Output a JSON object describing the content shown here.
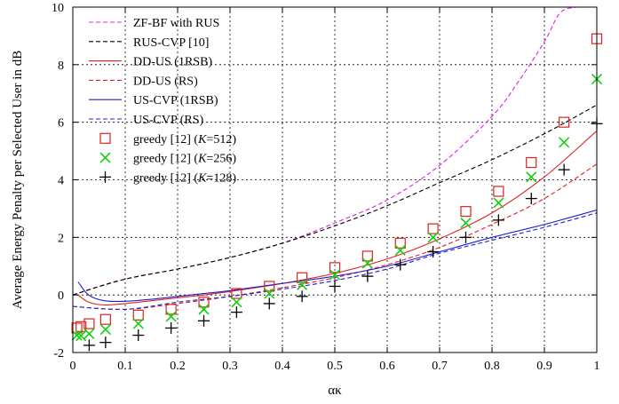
{
  "chart_data": {
    "type": "line",
    "xlabel": "ακ",
    "ylabel": "Average Energy Penalty per Selected User in dB",
    "xlim": [
      0,
      1
    ],
    "ylim": [
      -2,
      10
    ],
    "x_ticks": [
      0,
      0.1,
      0.2,
      0.3,
      0.4,
      0.5,
      0.6,
      0.7,
      0.8,
      0.9,
      1
    ],
    "x_tick_labels": [
      "0",
      "0.1",
      "0.2",
      "0.3",
      "0.4",
      "0.5",
      "0.6",
      "0.7",
      "0.8",
      "0.9",
      "1"
    ],
    "y_ticks": [
      -2,
      0,
      2,
      4,
      6,
      8,
      10
    ],
    "y_tick_labels": [
      "-2",
      "0",
      "2",
      "4",
      "6",
      "8",
      "10"
    ],
    "grid": true,
    "legend_position": "top-left",
    "series": [
      {
        "name": "ZF-BF with RUS",
        "style": "line",
        "dash": "dashed",
        "color": "#e020e0",
        "x": [
          0.0,
          0.05,
          0.1,
          0.2,
          0.3,
          0.4,
          0.5,
          0.6,
          0.7,
          0.8,
          0.85,
          0.9,
          0.93,
          0.96
        ],
        "y": [
          0.0,
          0.3,
          0.55,
          0.9,
          1.3,
          1.8,
          2.5,
          3.3,
          4.5,
          6.2,
          7.4,
          8.8,
          9.8,
          10.0
        ]
      },
      {
        "name": "RUS-CVP [10]",
        "style": "line",
        "dash": "dashed",
        "color": "#000000",
        "x": [
          0.0,
          0.1,
          0.2,
          0.3,
          0.4,
          0.5,
          0.6,
          0.7,
          0.8,
          0.9,
          1.0
        ],
        "y": [
          0.0,
          0.55,
          0.9,
          1.3,
          1.8,
          2.4,
          3.1,
          3.9,
          4.7,
          5.6,
          6.6
        ]
      },
      {
        "name": "DD-US (1RSB)",
        "style": "line",
        "dash": "solid",
        "color": "#e02020",
        "x": [
          0.01,
          0.03,
          0.06,
          0.1,
          0.15,
          0.2,
          0.25,
          0.3,
          0.4,
          0.5,
          0.6,
          0.7,
          0.8,
          0.9,
          1.0
        ],
        "y": [
          0.0,
          -0.25,
          -0.35,
          -0.3,
          -0.2,
          -0.1,
          0.0,
          0.12,
          0.4,
          0.75,
          1.25,
          1.95,
          2.85,
          4.1,
          5.7
        ]
      },
      {
        "name": "DD-US (RS)",
        "style": "line",
        "dash": "dashed",
        "color": "#e02020",
        "x": [
          0.0,
          0.1,
          0.2,
          0.3,
          0.4,
          0.5,
          0.6,
          0.7,
          0.8,
          0.9,
          1.0
        ],
        "y": [
          -0.4,
          -0.5,
          -0.3,
          -0.05,
          0.25,
          0.6,
          1.05,
          1.65,
          2.45,
          3.35,
          4.55
        ]
      },
      {
        "name": "US-CVP (1RSB)",
        "style": "line",
        "dash": "solid",
        "color": "#2020d0",
        "x": [
          0.01,
          0.03,
          0.06,
          0.1,
          0.15,
          0.2,
          0.25,
          0.3,
          0.4,
          0.5,
          0.6,
          0.7,
          0.8,
          0.9,
          1.0
        ],
        "y": [
          0.45,
          0.0,
          -0.2,
          -0.22,
          -0.15,
          -0.05,
          0.05,
          0.15,
          0.4,
          0.65,
          1.0,
          1.5,
          2.0,
          2.45,
          2.95
        ]
      },
      {
        "name": "US-CVP (RS)",
        "style": "line",
        "dash": "dashed",
        "color": "#2020d0",
        "x": [
          0.0,
          0.1,
          0.2,
          0.3,
          0.4,
          0.5,
          0.6,
          0.7,
          0.8,
          0.9,
          1.0
        ],
        "y": [
          -0.4,
          -0.5,
          -0.25,
          -0.05,
          0.2,
          0.5,
          0.9,
          1.45,
          1.9,
          2.35,
          2.85
        ]
      },
      {
        "name": "greedy [12] (K=512)",
        "name_parts": [
          "greedy [12] (",
          "K",
          "=512)"
        ],
        "style": "marker",
        "marker": "square",
        "color": "#e02020",
        "x": [
          0.0078,
          0.0156,
          0.0312,
          0.0625,
          0.125,
          0.1875,
          0.25,
          0.3125,
          0.375,
          0.4375,
          0.5,
          0.5625,
          0.625,
          0.6875,
          0.75,
          0.8125,
          0.875,
          0.9375,
          1.0
        ],
        "y": [
          -1.15,
          -1.1,
          -1.0,
          -0.85,
          -0.7,
          -0.5,
          -0.25,
          0.05,
          0.3,
          0.6,
          0.95,
          1.35,
          1.8,
          2.3,
          2.9,
          3.6,
          4.6,
          6.0,
          8.9
        ]
      },
      {
        "name": "greedy [12] (K=256)",
        "name_parts": [
          "greedy [12] (",
          "K",
          "=256)"
        ],
        "style": "marker",
        "marker": "x",
        "color": "#10d010",
        "x": [
          0.0078,
          0.0156,
          0.0312,
          0.0625,
          0.125,
          0.1875,
          0.25,
          0.3125,
          0.375,
          0.4375,
          0.5,
          0.5625,
          0.625,
          0.6875,
          0.75,
          0.8125,
          0.875,
          0.9375,
          1.0
        ],
        "y": [
          -1.4,
          -1.42,
          -1.35,
          -1.2,
          -1.0,
          -0.75,
          -0.5,
          -0.25,
          0.05,
          0.35,
          0.7,
          1.1,
          1.55,
          2.0,
          2.5,
          3.2,
          4.1,
          5.3,
          7.5
        ]
      },
      {
        "name": "greedy [12] (K=128)",
        "name_parts": [
          "greedy [12] (",
          "K",
          "=128)"
        ],
        "style": "marker",
        "marker": "plus",
        "color": "#000000",
        "x": [
          0.0312,
          0.0625,
          0.125,
          0.1875,
          0.25,
          0.3125,
          0.375,
          0.4375,
          0.5,
          0.5625,
          0.625,
          0.6875,
          0.75,
          0.8125,
          0.875,
          0.9375,
          1.0
        ],
        "y": [
          -1.75,
          -1.65,
          -1.4,
          -1.15,
          -0.9,
          -0.6,
          -0.3,
          -0.05,
          0.3,
          0.65,
          1.05,
          1.5,
          2.0,
          2.6,
          3.35,
          4.35,
          5.95
        ]
      }
    ]
  }
}
